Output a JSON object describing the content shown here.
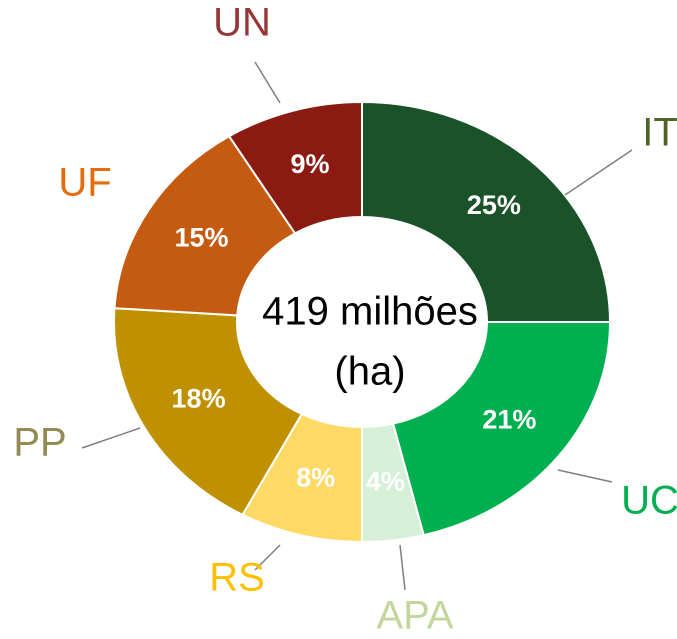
{
  "chart_data": {
    "type": "donut",
    "center_text": [
      "419 milhões",
      "(ha)"
    ],
    "categories": [
      "IT",
      "UC",
      "APA",
      "RS",
      "PP",
      "UF",
      "UN"
    ],
    "values": [
      25,
      21,
      4,
      8,
      18,
      15,
      9
    ],
    "value_labels": [
      "25%",
      "21%",
      "4%",
      "8%",
      "18%",
      "15%",
      "9%"
    ],
    "colors": [
      "#1a5229",
      "#00b050",
      "#d6f0d8",
      "#ffd966",
      "#bf9000",
      "#c55a11",
      "#8b1a10"
    ],
    "label_colors": [
      "#4f6228",
      "#00b050",
      "#c3d69b",
      "#ffc000",
      "#948a54",
      "#e46c0a",
      "#953735"
    ]
  }
}
